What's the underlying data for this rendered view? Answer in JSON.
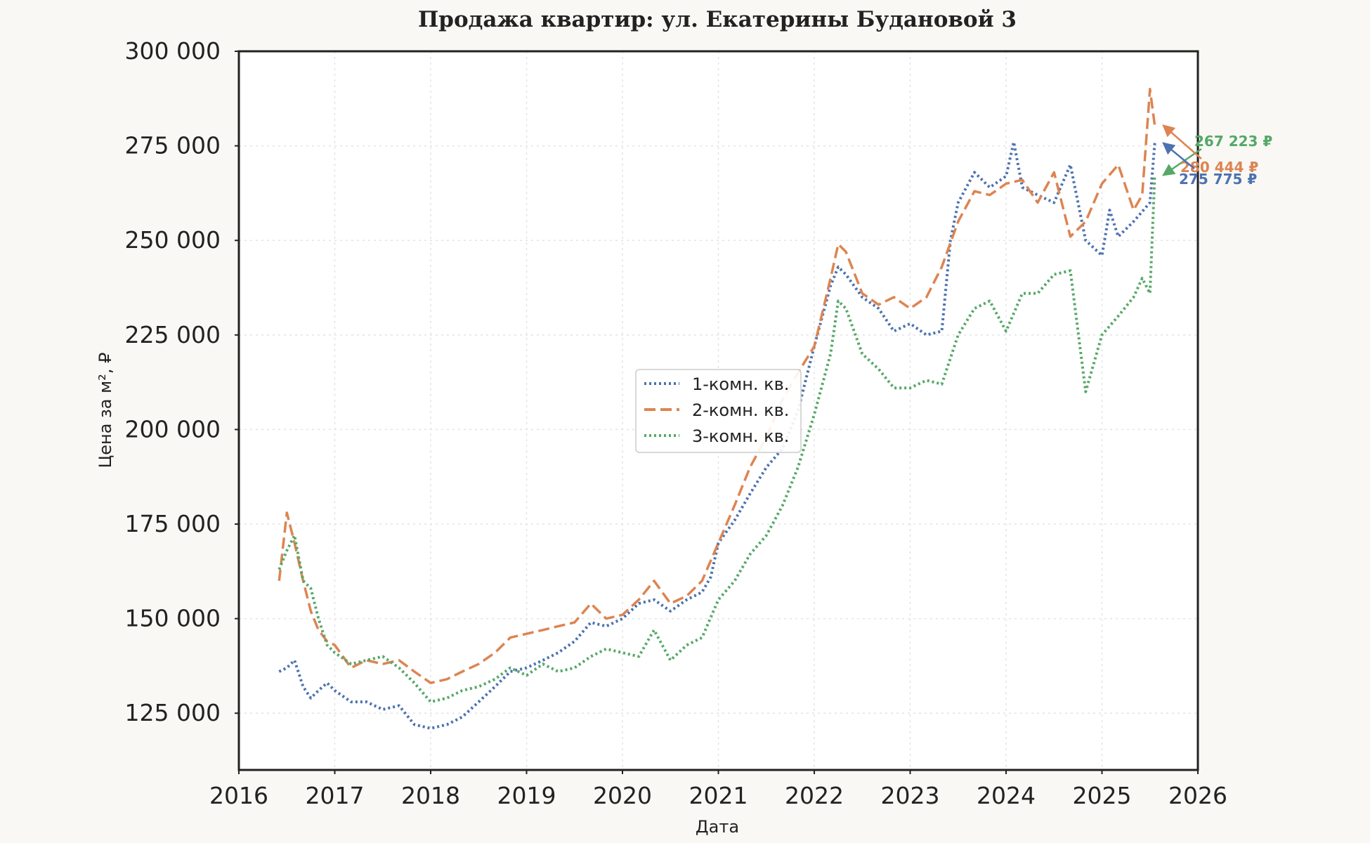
{
  "chart_data": {
    "type": "line",
    "title": "Продажа квартир: ул. Екатерины Будановой 3",
    "xlabel": "Дата",
    "ylabel": "Цена за м², ₽",
    "xlim": [
      2016,
      2026
    ],
    "ylim": [
      110000,
      300000
    ],
    "x_ticks": [
      2016,
      2017,
      2018,
      2019,
      2020,
      2021,
      2022,
      2023,
      2024,
      2025,
      2026
    ],
    "x_tick_labels": [
      "2016",
      "2017",
      "2018",
      "2019",
      "2020",
      "2021",
      "2022",
      "2023",
      "2024",
      "2025",
      "2026"
    ],
    "y_ticks": [
      125000,
      150000,
      175000,
      200000,
      225000,
      250000,
      275000,
      300000
    ],
    "y_tick_labels": [
      "125 000",
      "150 000",
      "175 000",
      "200 000",
      "225 000",
      "250 000",
      "275 000",
      "300 000"
    ],
    "grid": true,
    "legend_position": "center",
    "series": [
      {
        "name": "1-комн. кв.",
        "color": "#4c72b0",
        "line_style": "dotted",
        "x": [
          2016.42,
          2016.5,
          2016.58,
          2016.67,
          2016.75,
          2016.83,
          2016.92,
          2017.0,
          2017.17,
          2017.33,
          2017.5,
          2017.67,
          2017.83,
          2018.0,
          2018.17,
          2018.33,
          2018.5,
          2018.67,
          2018.83,
          2019.0,
          2019.17,
          2019.33,
          2019.5,
          2019.67,
          2019.83,
          2020.0,
          2020.17,
          2020.33,
          2020.5,
          2020.67,
          2020.83,
          2020.92,
          2021.0,
          2021.17,
          2021.33,
          2021.5,
          2021.67,
          2021.83,
          2022.0,
          2022.17,
          2022.25,
          2022.33,
          2022.5,
          2022.67,
          2022.83,
          2023.0,
          2023.17,
          2023.33,
          2023.42,
          2023.5,
          2023.67,
          2023.83,
          2024.0,
          2024.08,
          2024.17,
          2024.33,
          2024.5,
          2024.67,
          2024.83,
          2025.0,
          2025.08,
          2025.17,
          2025.33,
          2025.5,
          2025.55
        ],
        "y": [
          136000,
          137000,
          139000,
          132000,
          129000,
          131000,
          133000,
          131000,
          128000,
          128000,
          126000,
          127000,
          122000,
          121000,
          122000,
          124000,
          128000,
          132000,
          136000,
          137000,
          139000,
          141000,
          144000,
          149000,
          148000,
          150000,
          154000,
          155000,
          152000,
          155000,
          157000,
          161000,
          170000,
          176000,
          183000,
          190000,
          195000,
          205000,
          222000,
          238000,
          243000,
          241000,
          235000,
          232000,
          226000,
          228000,
          225000,
          226000,
          250000,
          260000,
          268000,
          264000,
          267000,
          276000,
          264000,
          262000,
          260000,
          270000,
          250000,
          246000,
          258000,
          251000,
          255000,
          260000,
          275775
        ]
      },
      {
        "name": "2-комн. кв.",
        "color": "#dd8452",
        "line_style": "dashed",
        "x": [
          2016.42,
          2016.5,
          2016.58,
          2016.67,
          2016.75,
          2016.83,
          2016.92,
          2017.0,
          2017.17,
          2017.33,
          2017.5,
          2017.67,
          2017.83,
          2018.0,
          2018.17,
          2018.33,
          2018.5,
          2018.67,
          2018.83,
          2019.0,
          2019.17,
          2019.33,
          2019.5,
          2019.67,
          2019.83,
          2020.0,
          2020.17,
          2020.33,
          2020.5,
          2020.67,
          2020.83,
          2021.0,
          2021.17,
          2021.33,
          2021.5,
          2021.67,
          2021.83,
          2022.0,
          2022.17,
          2022.25,
          2022.33,
          2022.5,
          2022.67,
          2022.83,
          2023.0,
          2023.17,
          2023.33,
          2023.5,
          2023.67,
          2023.83,
          2024.0,
          2024.17,
          2024.33,
          2024.5,
          2024.67,
          2024.83,
          2025.0,
          2025.17,
          2025.33,
          2025.42,
          2025.5,
          2025.55
        ],
        "y": [
          160000,
          178000,
          170000,
          160000,
          152000,
          147000,
          144000,
          143000,
          137000,
          139000,
          138000,
          139000,
          136000,
          133000,
          134000,
          136000,
          138000,
          141000,
          145000,
          146000,
          147000,
          148000,
          149000,
          154000,
          150000,
          151000,
          155000,
          160000,
          154000,
          156000,
          160000,
          170000,
          180000,
          190000,
          198000,
          208000,
          215000,
          222000,
          240000,
          249000,
          247000,
          236000,
          233000,
          235000,
          232000,
          235000,
          243000,
          255000,
          263000,
          262000,
          265000,
          266000,
          260000,
          268000,
          251000,
          255000,
          265000,
          270000,
          258000,
          262000,
          290000,
          280444
        ]
      },
      {
        "name": "3-комн. кв.",
        "color": "#55a868",
        "line_style": "dotted",
        "x": [
          2016.42,
          2016.5,
          2016.58,
          2016.67,
          2016.75,
          2016.83,
          2016.92,
          2017.0,
          2017.17,
          2017.33,
          2017.5,
          2017.67,
          2017.83,
          2018.0,
          2018.17,
          2018.33,
          2018.5,
          2018.67,
          2018.83,
          2019.0,
          2019.17,
          2019.33,
          2019.5,
          2019.67,
          2019.83,
          2020.0,
          2020.17,
          2020.33,
          2020.5,
          2020.67,
          2020.83,
          2021.0,
          2021.17,
          2021.33,
          2021.5,
          2021.67,
          2021.83,
          2022.0,
          2022.17,
          2022.25,
          2022.33,
          2022.5,
          2022.67,
          2022.83,
          2023.0,
          2023.17,
          2023.33,
          2023.5,
          2023.67,
          2023.83,
          2024.0,
          2024.17,
          2024.33,
          2024.5,
          2024.67,
          2024.83,
          2025.0,
          2025.17,
          2025.33,
          2025.42,
          2025.5,
          2025.55
        ],
        "y": [
          163000,
          168000,
          172000,
          160000,
          158000,
          150000,
          143000,
          141000,
          138000,
          139000,
          140000,
          137000,
          133000,
          128000,
          129000,
          131000,
          132000,
          134000,
          137000,
          135000,
          138000,
          136000,
          137000,
          140000,
          142000,
          141000,
          140000,
          147000,
          139000,
          143000,
          145000,
          155000,
          160000,
          167000,
          172000,
          180000,
          190000,
          204000,
          220000,
          234000,
          232000,
          220000,
          216000,
          211000,
          211000,
          213000,
          212000,
          225000,
          232000,
          234000,
          226000,
          236000,
          236000,
          241000,
          242000,
          210000,
          225000,
          230000,
          235000,
          240000,
          236000,
          267223
        ]
      }
    ],
    "annotations": [
      {
        "text": "267 223 ₽",
        "series_index": 2,
        "x": 2025.55,
        "y": 267223
      },
      {
        "text": "280 444 ₽",
        "series_index": 1,
        "x": 2025.55,
        "y": 280444
      },
      {
        "text": "275 775 ₽",
        "series_index": 0,
        "x": 2025.55,
        "y": 275775
      }
    ]
  }
}
